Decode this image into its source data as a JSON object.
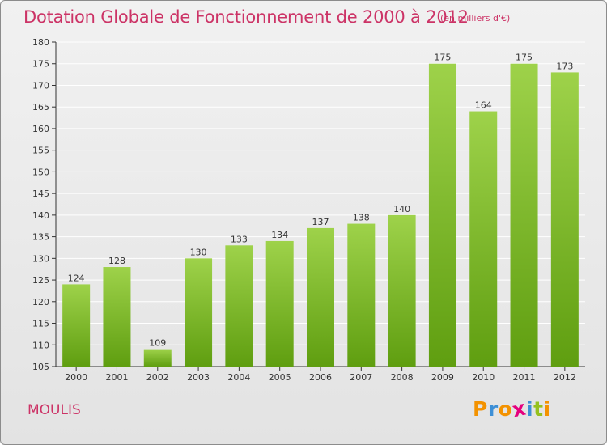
{
  "title": "Dotation Globale de Fonctionnement de 2000 à 2012",
  "subtitle": "(en milliers d'€)",
  "commune": "MOULIS",
  "logo": {
    "text": "ProXiti",
    "letters": [
      "P",
      "r",
      "o",
      "x",
      "i",
      "t",
      "i"
    ],
    "colors": [
      "#f39200",
      "#3d8fd6",
      "#f39200",
      "#e5007e",
      "#3d8fd6",
      "#95c11f",
      "#f39200"
    ]
  },
  "colors": {
    "accent": "#cc3366",
    "bar_top": "#9ed24a",
    "bar_bottom": "#5f9e10",
    "grid": "#ffffff"
  },
  "chart_data": {
    "type": "bar",
    "categories": [
      "2000",
      "2001",
      "2002",
      "2003",
      "2004",
      "2005",
      "2006",
      "2007",
      "2008",
      "2009",
      "2010",
      "2011",
      "2012"
    ],
    "values": [
      124,
      128,
      109,
      130,
      133,
      134,
      137,
      138,
      140,
      175,
      164,
      175,
      173
    ],
    "ylim": [
      105,
      180
    ],
    "yticks": [
      105,
      110,
      115,
      120,
      125,
      130,
      135,
      140,
      145,
      150,
      155,
      160,
      165,
      170,
      175,
      180
    ],
    "grid": true,
    "xlabel": "",
    "ylabel": ""
  }
}
